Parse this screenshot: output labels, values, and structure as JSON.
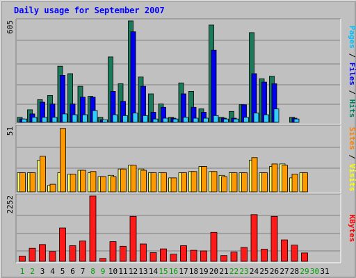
{
  "chart_data": {
    "type": "bar",
    "title": "Daily usage for September 2007",
    "categories": [
      "1",
      "2",
      "3",
      "4",
      "5",
      "6",
      "7",
      "8",
      "9",
      "10",
      "11",
      "12",
      "13",
      "14",
      "15",
      "16",
      "17",
      "18",
      "19",
      "20",
      "21",
      "22",
      "23",
      "24",
      "25",
      "26",
      "27",
      "28",
      "29",
      "30",
      "31"
    ],
    "weekend_days": [
      "1",
      "2",
      "8",
      "9",
      "15",
      "16",
      "22",
      "23",
      "29",
      "30"
    ],
    "panels": [
      {
        "id": "top",
        "max_label": "605",
        "ylim": [
          0,
          605
        ],
        "axis_labels": [
          {
            "text": "Pages",
            "color": "#00c0ff"
          },
          {
            "text": " / ",
            "color": "#000000"
          },
          {
            "text": "Files",
            "color": "#0000ff"
          },
          {
            "text": " / ",
            "color": "#000000"
          },
          {
            "text": "Hits",
            "color": "#008060"
          }
        ],
        "series": [
          {
            "name": "Hits",
            "color": "#1a7a5a",
            "values": [
              30,
              75,
              135,
              160,
              335,
              290,
              215,
              155,
              30,
              390,
              230,
              605,
              270,
              170,
              110,
              30,
              235,
              185,
              80,
              580,
              30,
              65,
              105,
              535,
              260,
              275,
              0,
              30,
              0,
              0,
              0
            ]
          },
          {
            "name": "Files",
            "color": "#0000ee",
            "values": [
              20,
              50,
              120,
              110,
              280,
              110,
              150,
              150,
              15,
              185,
              125,
              540,
              215,
              60,
              90,
              25,
              170,
              90,
              60,
              430,
              25,
              25,
              105,
              290,
              240,
              230,
              0,
              25,
              0,
              0,
              0
            ]
          },
          {
            "name": "Pages",
            "color": "#33ccff",
            "values": [
              20,
              30,
              30,
              30,
              50,
              45,
              45,
              70,
              15,
              45,
              40,
              55,
              40,
              20,
              25,
              20,
              30,
              25,
              25,
              40,
              20,
              20,
              30,
              55,
              45,
              80,
              0,
              20,
              0,
              0,
              0
            ]
          }
        ]
      },
      {
        "id": "middle",
        "max_label": "51",
        "ylim": [
          0,
          51
        ],
        "axis_labels": [
          {
            "text": "Sites",
            "color": "#ff8000"
          },
          {
            "text": " / ",
            "color": "#000000"
          },
          {
            "text": "Visits",
            "color": "#ffff00"
          }
        ],
        "series": [
          {
            "name": "Visits",
            "color": "#ffff66",
            "values": [
              15,
              15,
              25,
              5,
              15,
              14,
              17,
              15,
              12,
              13,
              18,
              21,
              18,
              15,
              15,
              11,
              15,
              16,
              20,
              16,
              13,
              15,
              15,
              25,
              15,
              20,
              22,
              11,
              15,
              0,
              0
            ]
          },
          {
            "name": "Sites",
            "color": "#ff9900",
            "values": [
              15,
              15,
              28,
              6,
              50,
              14,
              17,
              16,
              12,
              12,
              18,
              21,
              17,
              15,
              15,
              11,
              15,
              16,
              20,
              16,
              12,
              15,
              15,
              27,
              15,
              22,
              21,
              14,
              15,
              0,
              0
            ]
          }
        ]
      },
      {
        "id": "bottom",
        "max_label": "2252",
        "ylim": [
          0,
          2252
        ],
        "axis_labels": [
          {
            "text": "KBytes",
            "color": "#ff0000"
          }
        ],
        "series": [
          {
            "name": "KBytes",
            "color": "#ff1a1a",
            "values": [
              180,
              450,
              580,
              340,
              1150,
              540,
              700,
              2252,
              100,
              680,
              520,
              1550,
              600,
              300,
              430,
              250,
              540,
              380,
              360,
              1000,
              200,
              320,
              480,
              1610,
              420,
              1550,
              740,
              560,
              290,
              0,
              0
            ]
          }
        ]
      }
    ]
  }
}
